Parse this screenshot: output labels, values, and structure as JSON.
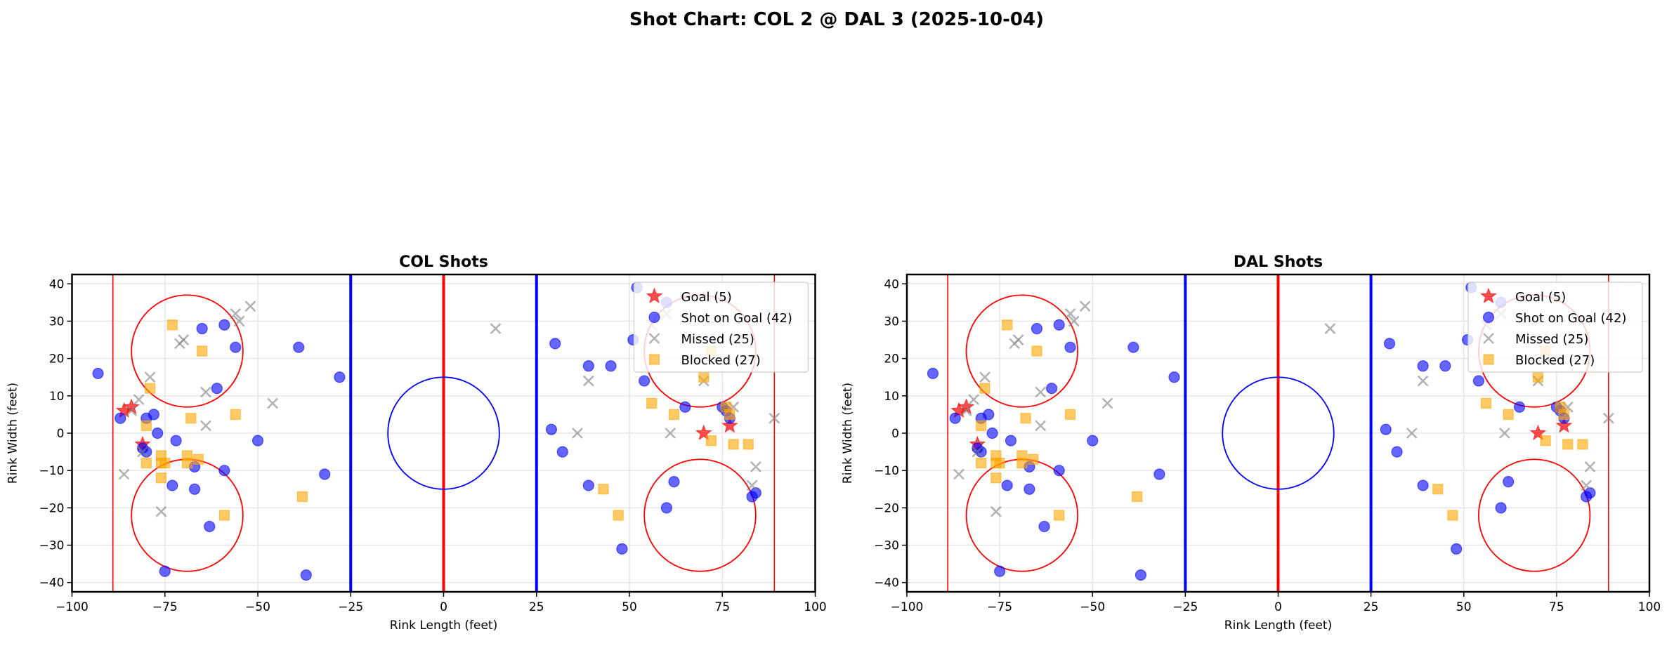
{
  "figure": {
    "title": "Shot Chart: COL 2 @ DAL 3 (2025-10-04)"
  },
  "colors": {
    "goal": "#ff0000",
    "shot_on_goal": "#0000ff",
    "missed": "#808080",
    "blocked": "#ffa500",
    "center_line": "#ff0000",
    "blue_line": "#0000ff",
    "goal_line": "#ff0000",
    "faceoff_circle": "#ff0000",
    "center_circle": "#0000ff"
  },
  "chart_data": [
    {
      "type": "scatter",
      "title": "COL Shots",
      "xlabel": "Rink Length (feet)",
      "ylabel": "Rink Width (feet)",
      "xlim": [
        -100,
        100
      ],
      "ylim": [
        -42.5,
        42.5
      ],
      "grid": true,
      "legend_position": "upper right",
      "x_ticks": [
        "−100",
        "−75",
        "−50",
        "−25",
        "0",
        "25",
        "50",
        "75",
        "100"
      ],
      "x_tick_values": [
        -100,
        -75,
        -50,
        -25,
        0,
        25,
        50,
        75,
        100
      ],
      "y_ticks": [
        "−40",
        "−30",
        "−20",
        "−10",
        "0",
        "10",
        "20",
        "30",
        "40"
      ],
      "y_tick_values": [
        -40,
        -30,
        -20,
        -10,
        0,
        10,
        20,
        30,
        40
      ],
      "series": [
        {
          "name": "Goal (5)",
          "marker": "star",
          "points": [
            [
              -86,
              6
            ],
            [
              -84,
              7
            ],
            [
              -81,
              -3
            ],
            [
              70,
              0
            ],
            [
              77,
              2
            ]
          ]
        },
        {
          "name": "Shot on Goal (42)",
          "marker": "circle",
          "points": [
            [
              -93,
              16
            ],
            [
              -65,
              28
            ],
            [
              -59,
              29
            ],
            [
              -56,
              23
            ],
            [
              -39,
              23
            ],
            [
              -28,
              15
            ],
            [
              -61,
              12
            ],
            [
              -87,
              4
            ],
            [
              -80,
              4
            ],
            [
              -78,
              5
            ],
            [
              -77,
              0
            ],
            [
              -72,
              -2
            ],
            [
              -50,
              -2
            ],
            [
              -81,
              -4
            ],
            [
              -80,
              -5
            ],
            [
              -67,
              -9
            ],
            [
              -59,
              -10
            ],
            [
              -32,
              -11
            ],
            [
              -73,
              -14
            ],
            [
              -67,
              -15
            ],
            [
              -63,
              -25
            ],
            [
              -75,
              -37
            ],
            [
              -37,
              -38
            ],
            [
              30,
              24
            ],
            [
              39,
              18
            ],
            [
              45,
              18
            ],
            [
              54,
              14
            ],
            [
              65,
              7
            ],
            [
              75,
              7
            ],
            [
              77,
              4
            ],
            [
              76,
              6
            ],
            [
              29,
              1
            ],
            [
              32,
              -5
            ],
            [
              39,
              -14
            ],
            [
              62,
              -13
            ],
            [
              60,
              -20
            ],
            [
              83,
              -17
            ],
            [
              84,
              -16
            ],
            [
              48,
              -31
            ],
            [
              52,
              39
            ],
            [
              60,
              35
            ],
            [
              51,
              25
            ]
          ]
        },
        {
          "name": "Missed (25)",
          "marker": "x",
          "points": [
            [
              -52,
              34
            ],
            [
              -56,
              32
            ],
            [
              -55,
              30
            ],
            [
              -71,
              24
            ],
            [
              -70,
              25
            ],
            [
              -79,
              15
            ],
            [
              -64,
              11
            ],
            [
              -82,
              9
            ],
            [
              -84,
              6
            ],
            [
              -46,
              8
            ],
            [
              -64,
              2
            ],
            [
              -81,
              -5
            ],
            [
              -86,
              -11
            ],
            [
              -76,
              -21
            ],
            [
              14,
              28
            ],
            [
              39,
              14
            ],
            [
              36,
              0
            ],
            [
              61,
              0
            ],
            [
              70,
              14
            ],
            [
              78,
              7
            ],
            [
              89,
              4
            ],
            [
              84,
              -9
            ],
            [
              83,
              -14
            ],
            [
              60,
              32
            ],
            [
              56,
              29
            ]
          ]
        },
        {
          "name": "Blocked (27)",
          "marker": "square",
          "points": [
            [
              -73,
              29
            ],
            [
              -65,
              22
            ],
            [
              -79,
              12
            ],
            [
              -68,
              4
            ],
            [
              -56,
              5
            ],
            [
              -80,
              2
            ],
            [
              -76,
              -6
            ],
            [
              -69,
              -6
            ],
            [
              -66,
              -7
            ],
            [
              -80,
              -8
            ],
            [
              -76,
              -8
            ],
            [
              -75,
              -8
            ],
            [
              -69,
              -8
            ],
            [
              -76,
              -12
            ],
            [
              -38,
              -17
            ],
            [
              -59,
              -22
            ],
            [
              56,
              8
            ],
            [
              62,
              5
            ],
            [
              70,
              15
            ],
            [
              72,
              22
            ],
            [
              76,
              7
            ],
            [
              77,
              5
            ],
            [
              72,
              -2
            ],
            [
              78,
              -3
            ],
            [
              82,
              -3
            ],
            [
              43,
              -15
            ],
            [
              47,
              -22
            ]
          ]
        }
      ]
    },
    {
      "type": "scatter",
      "title": "DAL Shots",
      "xlabel": "Rink Length (feet)",
      "ylabel": "Rink Width (feet)",
      "xlim": [
        -100,
        100
      ],
      "ylim": [
        -42.5,
        42.5
      ],
      "grid": true,
      "legend_position": "upper right",
      "x_ticks": [
        "−100",
        "−75",
        "−50",
        "−25",
        "0",
        "25",
        "50",
        "75",
        "100"
      ],
      "x_tick_values": [
        -100,
        -75,
        -50,
        -25,
        0,
        25,
        50,
        75,
        100
      ],
      "y_ticks": [
        "−40",
        "−30",
        "−20",
        "−10",
        "0",
        "10",
        "20",
        "30",
        "40"
      ],
      "y_tick_values": [
        -40,
        -30,
        -20,
        -10,
        0,
        10,
        20,
        30,
        40
      ],
      "series": [
        {
          "name": "Goal (5)",
          "marker": "star",
          "points": [
            [
              -86,
              6
            ],
            [
              -84,
              7
            ],
            [
              -81,
              -3
            ],
            [
              70,
              0
            ],
            [
              77,
              2
            ]
          ]
        },
        {
          "name": "Shot on Goal (42)",
          "marker": "circle",
          "points": [
            [
              -93,
              16
            ],
            [
              -65,
              28
            ],
            [
              -59,
              29
            ],
            [
              -56,
              23
            ],
            [
              -39,
              23
            ],
            [
              -28,
              15
            ],
            [
              -61,
              12
            ],
            [
              -87,
              4
            ],
            [
              -80,
              4
            ],
            [
              -78,
              5
            ],
            [
              -77,
              0
            ],
            [
              -72,
              -2
            ],
            [
              -50,
              -2
            ],
            [
              -81,
              -4
            ],
            [
              -80,
              -5
            ],
            [
              -67,
              -9
            ],
            [
              -59,
              -10
            ],
            [
              -32,
              -11
            ],
            [
              -73,
              -14
            ],
            [
              -67,
              -15
            ],
            [
              -63,
              -25
            ],
            [
              -75,
              -37
            ],
            [
              -37,
              -38
            ],
            [
              30,
              24
            ],
            [
              39,
              18
            ],
            [
              45,
              18
            ],
            [
              54,
              14
            ],
            [
              65,
              7
            ],
            [
              75,
              7
            ],
            [
              77,
              4
            ],
            [
              76,
              6
            ],
            [
              29,
              1
            ],
            [
              32,
              -5
            ],
            [
              39,
              -14
            ],
            [
              62,
              -13
            ],
            [
              60,
              -20
            ],
            [
              83,
              -17
            ],
            [
              84,
              -16
            ],
            [
              48,
              -31
            ],
            [
              52,
              39
            ],
            [
              60,
              35
            ],
            [
              51,
              25
            ]
          ]
        },
        {
          "name": "Missed (25)",
          "marker": "x",
          "points": [
            [
              -52,
              34
            ],
            [
              -56,
              32
            ],
            [
              -55,
              30
            ],
            [
              -71,
              24
            ],
            [
              -70,
              25
            ],
            [
              -79,
              15
            ],
            [
              -64,
              11
            ],
            [
              -82,
              9
            ],
            [
              -84,
              6
            ],
            [
              -46,
              8
            ],
            [
              -64,
              2
            ],
            [
              -81,
              -5
            ],
            [
              -86,
              -11
            ],
            [
              -76,
              -21
            ],
            [
              14,
              28
            ],
            [
              39,
              14
            ],
            [
              36,
              0
            ],
            [
              61,
              0
            ],
            [
              70,
              14
            ],
            [
              78,
              7
            ],
            [
              89,
              4
            ],
            [
              84,
              -9
            ],
            [
              83,
              -14
            ],
            [
              60,
              32
            ],
            [
              56,
              29
            ]
          ]
        },
        {
          "name": "Blocked (27)",
          "marker": "square",
          "points": [
            [
              -73,
              29
            ],
            [
              -65,
              22
            ],
            [
              -79,
              12
            ],
            [
              -68,
              4
            ],
            [
              -56,
              5
            ],
            [
              -80,
              2
            ],
            [
              -76,
              -6
            ],
            [
              -69,
              -6
            ],
            [
              -66,
              -7
            ],
            [
              -80,
              -8
            ],
            [
              -76,
              -8
            ],
            [
              -75,
              -8
            ],
            [
              -69,
              -8
            ],
            [
              -76,
              -12
            ],
            [
              -38,
              -17
            ],
            [
              -59,
              -22
            ],
            [
              56,
              8
            ],
            [
              62,
              5
            ],
            [
              70,
              15
            ],
            [
              72,
              22
            ],
            [
              76,
              7
            ],
            [
              77,
              5
            ],
            [
              72,
              -2
            ],
            [
              78,
              -3
            ],
            [
              82,
              -3
            ],
            [
              43,
              -15
            ],
            [
              47,
              -22
            ]
          ]
        }
      ]
    }
  ]
}
